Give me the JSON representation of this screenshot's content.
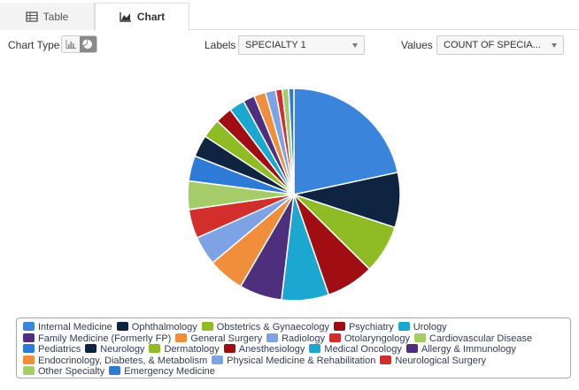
{
  "tabs": [
    {
      "label": "Table",
      "icon": "table-icon",
      "active": false
    },
    {
      "label": "Chart",
      "icon": "area-chart-icon",
      "active": true
    }
  ],
  "controls": {
    "chart_type_label": "Chart Type",
    "chart_type_options": [
      {
        "icon": "bar-chart-icon",
        "active": false
      },
      {
        "icon": "pie-chart-icon",
        "active": true
      }
    ],
    "labels_label": "Labels",
    "labels_value": "SPECIALTY 1",
    "values_label": "Values",
    "values_value": "COUNT OF SPECIA..."
  },
  "chart_data": {
    "type": "pie",
    "legend_position": "bottom",
    "categories": [
      "Internal Medicine",
      "Ophthalmology",
      "Obstetrics & Gynaecology",
      "Psychiatry",
      "Urology",
      "Family Medicine (Formerly FP)",
      "General Surgery",
      "Radiology",
      "Otolaryngology",
      "Cardiovascular Disease",
      "Pediatrics",
      "Neurology",
      "Dermatology",
      "Anesthesiology",
      "Medical Oncology",
      "Allergy & Immunology",
      "Endocrinology, Diabetes, & Metabolism",
      "Physical Medicine & Rehabilitation",
      "Neurological Surgery",
      "Other Specialty",
      "Emergency Medicine"
    ],
    "values": [
      22,
      8.5,
      7.5,
      7.4,
      7.3,
      6.6,
      5.6,
      4.5,
      4.5,
      4.4,
      3.9,
      3.4,
      3.0,
      2.6,
      2.4,
      1.8,
      1.8,
      1.6,
      1.0,
      1.0,
      0.8
    ],
    "colors": [
      "#3a84dc",
      "#0e2440",
      "#8fbb25",
      "#a00d12",
      "#1ba8d0",
      "#4d2f7d",
      "#f08e3c",
      "#7ea3e4",
      "#d22e2c",
      "#a4cc68",
      "#2e7ad7",
      "#0e2440",
      "#8fbb25",
      "#a00d12",
      "#1ba8d0",
      "#4d2f7d",
      "#f08e3c",
      "#7ea3e4",
      "#d22e2c",
      "#a4cc68",
      "#2e7ad7"
    ]
  }
}
